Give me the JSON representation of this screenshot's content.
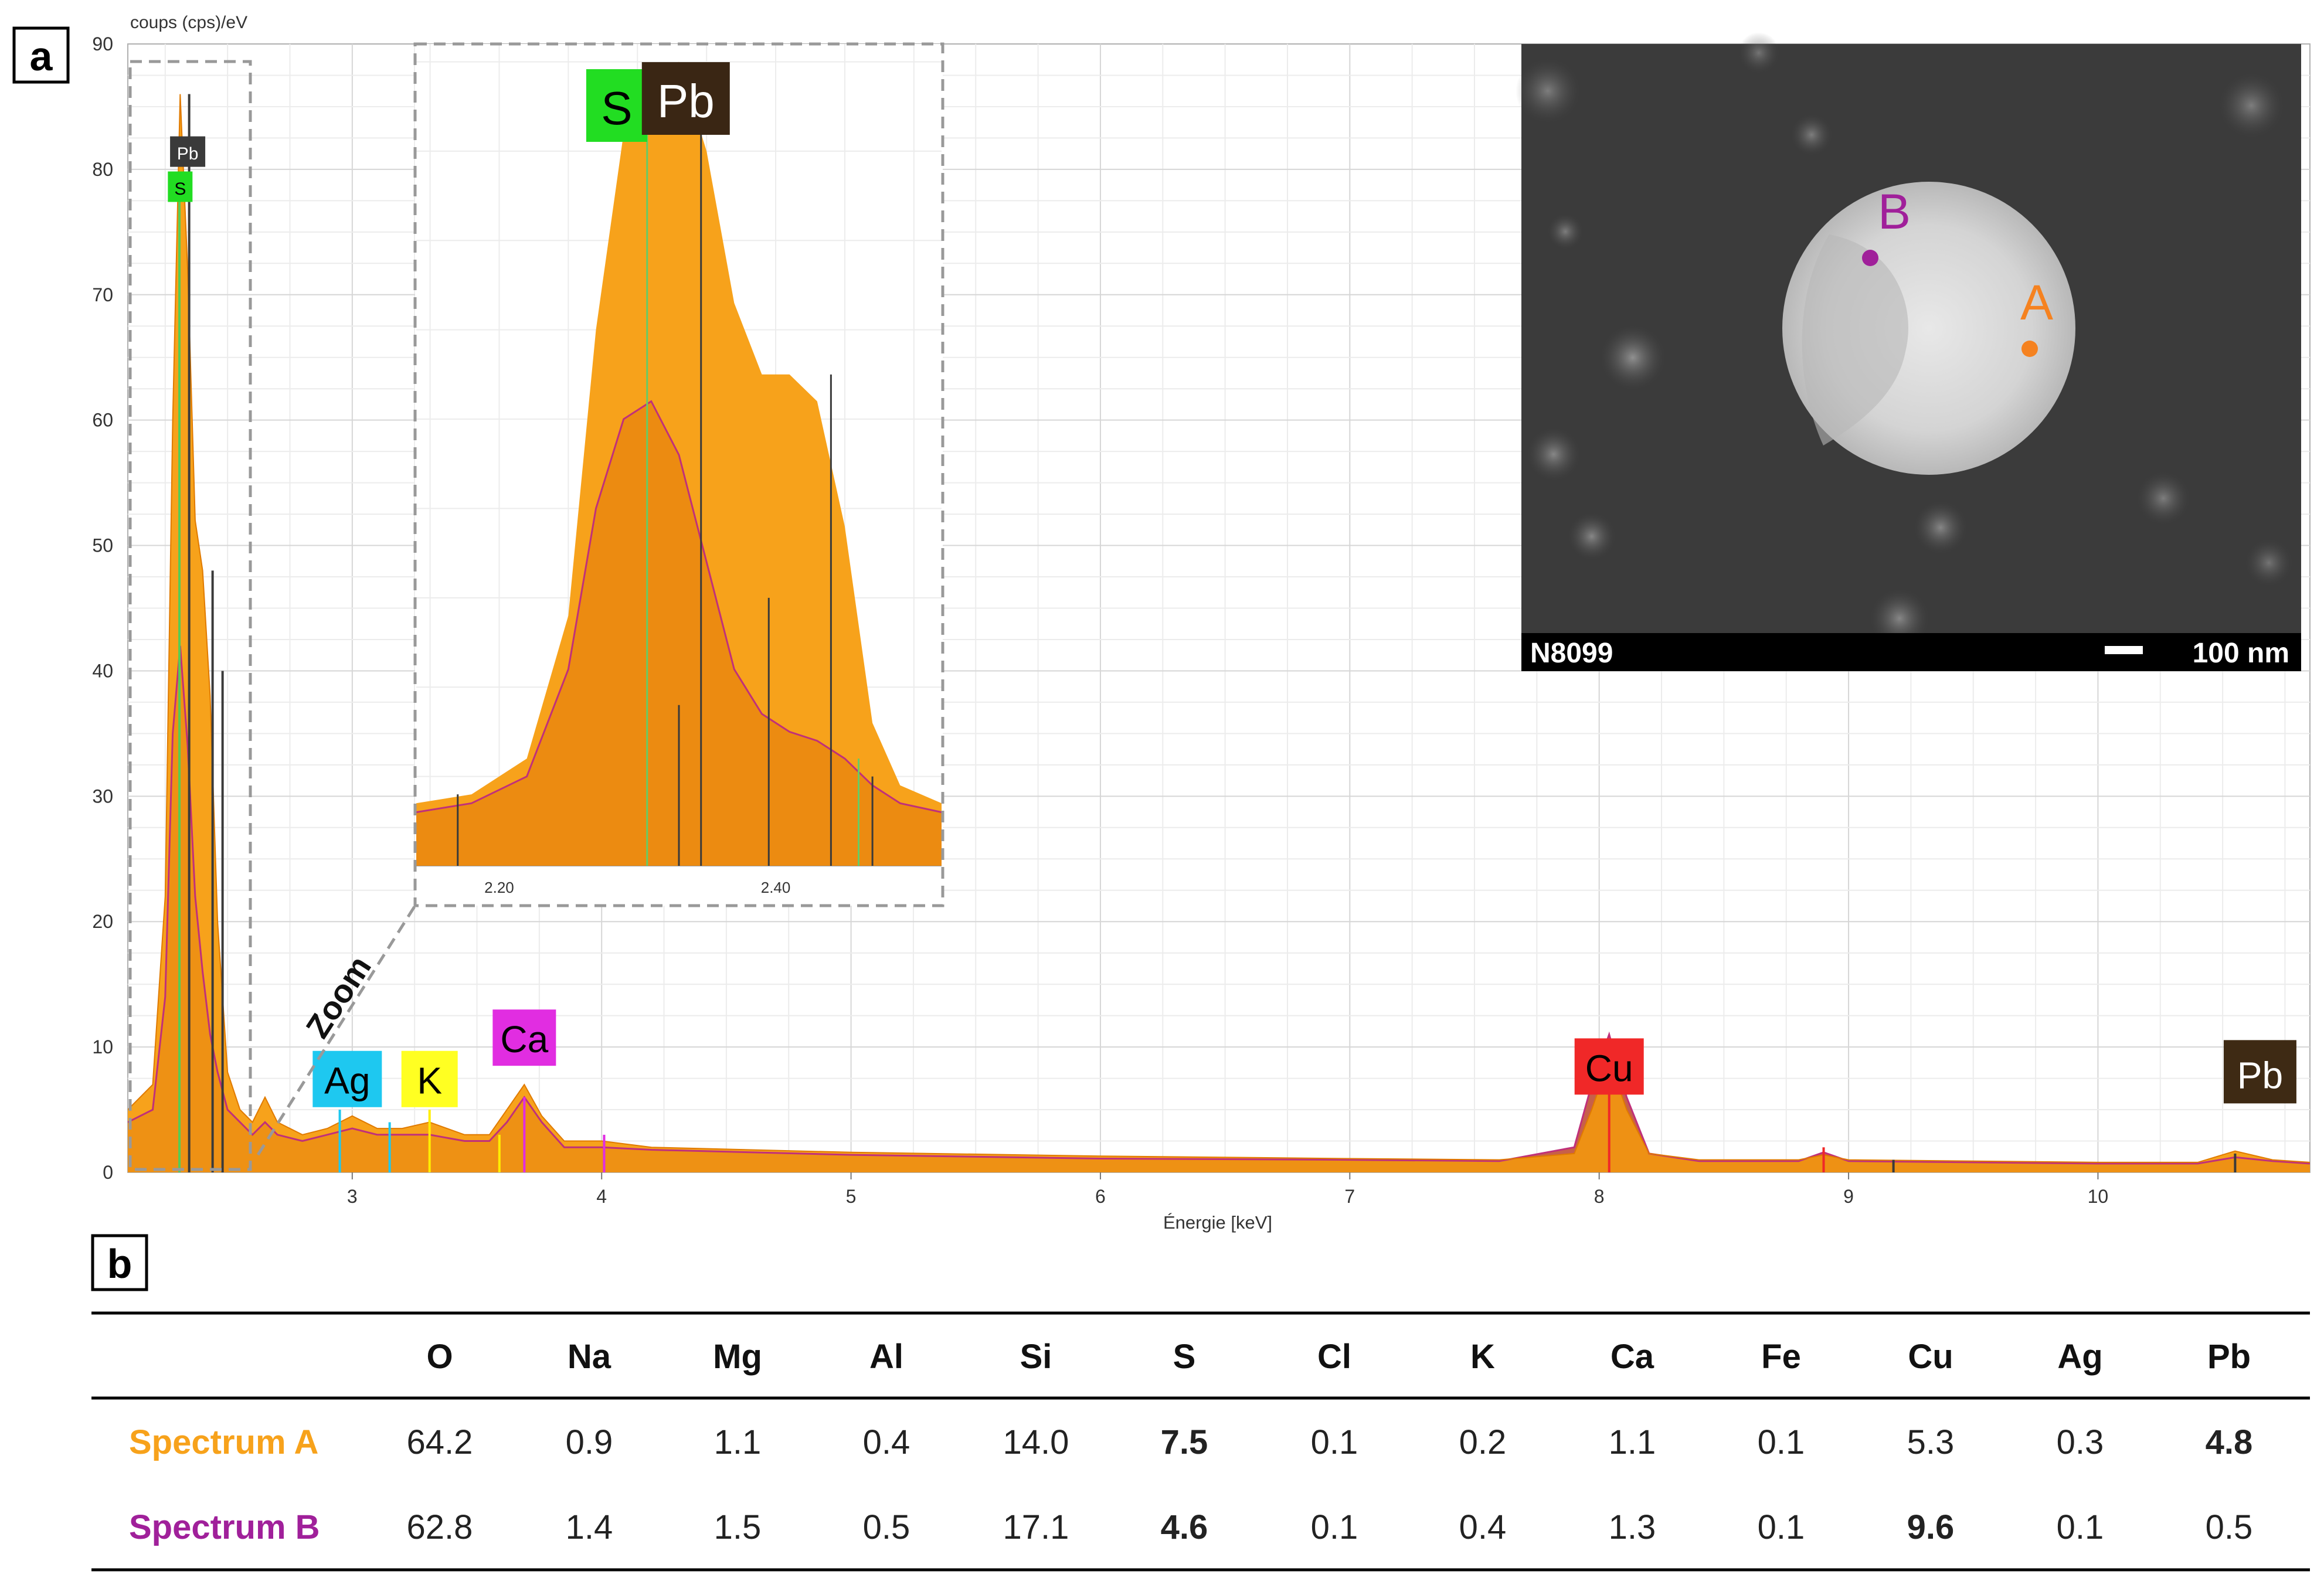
{
  "panels": {
    "a": "a",
    "b": "b"
  },
  "chart_data": {
    "type": "area",
    "ylabel": "coups (cps)/eV",
    "xlabel": "Énergie [keV]",
    "xlim": [
      2.1,
      10.85
    ],
    "ylim": [
      0,
      90
    ],
    "xticks": [
      "3",
      "4",
      "5",
      "6",
      "7",
      "8",
      "9",
      "10"
    ],
    "yticks": [
      "0",
      "10",
      "20",
      "30",
      "40",
      "50",
      "60",
      "70",
      "80",
      "90"
    ],
    "grid": true,
    "series": [
      {
        "name": "Spectrum A",
        "color": "#F7A21B",
        "x": [
          2.1,
          2.2,
          2.25,
          2.28,
          2.31,
          2.34,
          2.37,
          2.4,
          2.43,
          2.46,
          2.5,
          2.55,
          2.6,
          2.65,
          2.7,
          2.8,
          2.9,
          3.0,
          3.1,
          3.2,
          3.31,
          3.45,
          3.55,
          3.62,
          3.69,
          3.76,
          3.85,
          4.0,
          4.2,
          5.0,
          6.0,
          7.0,
          7.6,
          7.9,
          7.97,
          8.04,
          8.11,
          8.2,
          8.4,
          8.8,
          8.9,
          9.0,
          10.0,
          10.4,
          10.55,
          10.7,
          10.85
        ],
        "y": [
          5,
          7,
          22,
          60,
          86,
          72,
          52,
          48,
          38,
          20,
          8,
          5,
          4,
          6,
          4,
          3,
          3.5,
          4.5,
          3.5,
          3.5,
          4,
          3,
          3,
          5,
          7,
          4.5,
          2.5,
          2.5,
          2,
          1.6,
          1.3,
          1.1,
          1,
          1.5,
          5,
          9,
          5,
          1.5,
          1,
          1,
          1.4,
          1,
          0.8,
          0.8,
          1.7,
          1,
          0.8
        ]
      },
      {
        "name": "Spectrum B",
        "color": "#9B2C8A",
        "x": [
          2.1,
          2.2,
          2.25,
          2.28,
          2.31,
          2.34,
          2.37,
          2.4,
          2.43,
          2.46,
          2.5,
          2.55,
          2.6,
          2.65,
          2.7,
          2.8,
          2.9,
          3.0,
          3.1,
          3.2,
          3.31,
          3.45,
          3.55,
          3.62,
          3.69,
          3.76,
          3.85,
          4.0,
          4.2,
          5.0,
          6.0,
          7.0,
          7.6,
          7.9,
          7.97,
          8.04,
          8.11,
          8.2,
          8.4,
          8.8,
          8.9,
          9.0,
          10.0,
          10.4,
          10.55,
          10.7,
          10.85
        ],
        "y": [
          4,
          5,
          14,
          35,
          42,
          34,
          22,
          16,
          11,
          8,
          5,
          4,
          3,
          4,
          3,
          2.5,
          3,
          3.5,
          3,
          3,
          3,
          2.5,
          2.5,
          4,
          6,
          4,
          2,
          2,
          1.8,
          1.4,
          1.1,
          1,
          0.9,
          2,
          7,
          11,
          6,
          1.5,
          0.9,
          0.9,
          1.6,
          0.9,
          0.7,
          0.7,
          1.2,
          0.9,
          0.7
        ]
      }
    ],
    "element_labels": [
      {
        "text": "Pb",
        "x": 2.34,
        "color": "#3A3A3A",
        "text_color": "#ffffff"
      },
      {
        "text": "S",
        "x": 2.31,
        "color": "#22DD22",
        "text_color": "#000000"
      },
      {
        "text": "Ag",
        "x": 2.98,
        "color": "#1EC8F0",
        "text_color": "#000000"
      },
      {
        "text": "K",
        "x": 3.31,
        "color": "#FFFF22",
        "text_color": "#000000"
      },
      {
        "text": "Ca",
        "x": 3.69,
        "color": "#E12DE1",
        "text_color": "#000000"
      },
      {
        "text": "Cu",
        "x": 8.04,
        "color": "#F02828",
        "text_color": "#000000"
      },
      {
        "text": "Pb",
        "x": 10.65,
        "color": "#3E2A14",
        "text_color": "#ffffff"
      }
    ],
    "marker_lines": [
      {
        "x": 2.307,
        "y": 79,
        "color": "#55CC55"
      },
      {
        "x": 2.346,
        "y": 86,
        "color": "#3A3A3A"
      },
      {
        "x": 2.44,
        "y": 48,
        "color": "#3A3A3A"
      },
      {
        "x": 2.48,
        "y": 40,
        "color": "#3A3A3A"
      },
      {
        "x": 2.95,
        "y": 5,
        "color": "#1EC8F0"
      },
      {
        "x": 3.15,
        "y": 4,
        "color": "#1EC8F0"
      },
      {
        "x": 3.31,
        "y": 5,
        "color": "#FFEE00"
      },
      {
        "x": 3.59,
        "y": 3,
        "color": "#FFEE00"
      },
      {
        "x": 3.69,
        "y": 6,
        "color": "#E12DE1"
      },
      {
        "x": 4.01,
        "y": 3,
        "color": "#E12DE1"
      },
      {
        "x": 8.04,
        "y": 8,
        "color": "#F02828"
      },
      {
        "x": 8.9,
        "y": 2,
        "color": "#F02828"
      },
      {
        "x": 9.18,
        "y": 1,
        "color": "#3A3A3A"
      },
      {
        "x": 10.55,
        "y": 1.5,
        "color": "#3A3A3A"
      }
    ],
    "zoom_inset": {
      "label": "Zoom",
      "xlim": [
        2.14,
        2.52
      ],
      "xticks": [
        "2.20",
        "2.40"
      ],
      "labels": [
        {
          "text": "S",
          "x": 2.285,
          "color": "#22DD22",
          "text_color": "#000000"
        },
        {
          "text": "Pb",
          "x": 2.335,
          "color": "#3A2614",
          "text_color": "#ffffff"
        }
      ],
      "series_a": {
        "x": [
          2.14,
          2.18,
          2.22,
          2.25,
          2.27,
          2.29,
          2.31,
          2.33,
          2.35,
          2.37,
          2.39,
          2.41,
          2.43,
          2.45,
          2.47,
          2.49,
          2.52
        ],
        "y": [
          7,
          8,
          12,
          28,
          60,
          82,
          88,
          90,
          80,
          63,
          55,
          55,
          52,
          38,
          16,
          9,
          7
        ]
      },
      "series_b": {
        "x": [
          2.14,
          2.18,
          2.22,
          2.25,
          2.27,
          2.29,
          2.31,
          2.33,
          2.35,
          2.37,
          2.39,
          2.41,
          2.43,
          2.45,
          2.47,
          2.49,
          2.52
        ],
        "y": [
          6,
          7,
          10,
          22,
          40,
          50,
          52,
          46,
          34,
          22,
          17,
          15,
          14,
          12,
          9,
          7,
          6
        ]
      },
      "marker_lines": [
        {
          "x": 2.17,
          "y": 8,
          "color": "#3A3A3A"
        },
        {
          "x": 2.307,
          "y": 88,
          "color": "#66CC66"
        },
        {
          "x": 2.33,
          "y": 18,
          "color": "#3A3A3A"
        },
        {
          "x": 2.346,
          "y": 88,
          "color": "#3A3A3A"
        },
        {
          "x": 2.395,
          "y": 30,
          "color": "#3A3A3A"
        },
        {
          "x": 2.44,
          "y": 55,
          "color": "#3A3A3A"
        },
        {
          "x": 2.46,
          "y": 12,
          "color": "#66CC66"
        },
        {
          "x": 2.47,
          "y": 10,
          "color": "#3A3A3A"
        }
      ]
    }
  },
  "micrograph": {
    "id_label": "N8099",
    "scale_label": "100 nm",
    "point_a": {
      "label": "A",
      "color": "#F58220"
    },
    "point_b": {
      "label": "B",
      "color": "#A0209A"
    }
  },
  "table": {
    "columns": [
      "O",
      "Na",
      "Mg",
      "Al",
      "Si",
      "S",
      "Cl",
      "K",
      "Ca",
      "Fe",
      "Cu",
      "Ag",
      "Pb"
    ],
    "rows": [
      {
        "label": "Spectrum A",
        "color": "#F7A21B",
        "values": [
          "64.2",
          "0.9",
          "1.1",
          "0.4",
          "14.0",
          "7.5",
          "0.1",
          "0.2",
          "1.1",
          "0.1",
          "5.3",
          "0.3",
          "4.8"
        ],
        "bold": [
          5,
          12
        ]
      },
      {
        "label": "Spectrum B",
        "color": "#A0209A",
        "values": [
          "62.8",
          "1.4",
          "1.5",
          "0.5",
          "17.1",
          "4.6",
          "0.1",
          "0.4",
          "1.3",
          "0.1",
          "9.6",
          "0.1",
          "0.5"
        ],
        "bold": [
          5,
          10
        ]
      }
    ]
  }
}
